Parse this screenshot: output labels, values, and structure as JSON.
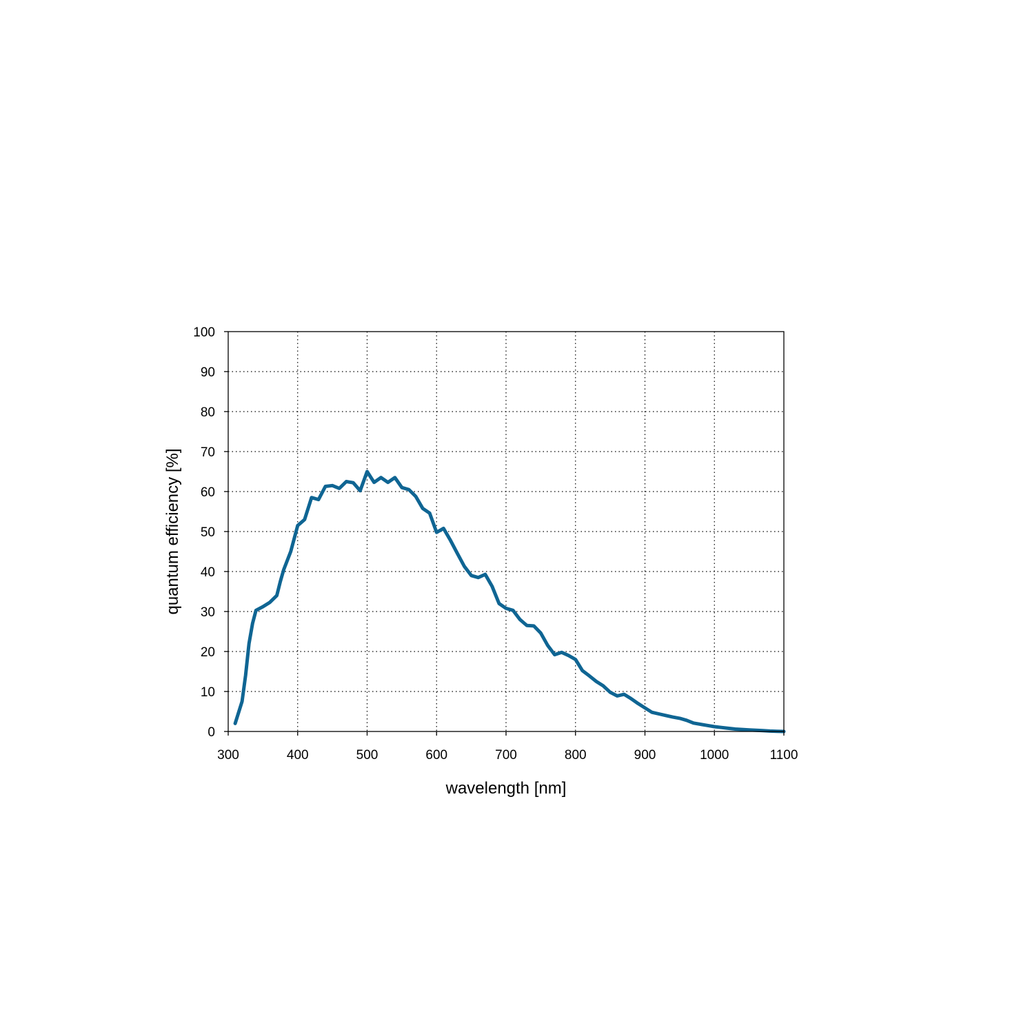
{
  "chart_data": {
    "type": "line",
    "title": "",
    "xlabel": "wavelength [nm]",
    "ylabel": "quantum efficiency [%]",
    "xlim": [
      300,
      1100
    ],
    "ylim": [
      0,
      100
    ],
    "xticks": [
      300,
      400,
      500,
      600,
      700,
      800,
      900,
      1000,
      1100
    ],
    "yticks": [
      0,
      10,
      20,
      30,
      40,
      50,
      60,
      70,
      80,
      90,
      100
    ],
    "grid": true,
    "legend": "none",
    "line_color": "#0f6593",
    "series": [
      {
        "x": [
          310,
          320,
          325,
          330,
          335,
          340,
          350,
          360,
          370,
          375,
          380,
          390,
          400,
          410,
          420,
          430,
          440,
          450,
          460,
          470,
          480,
          490,
          500,
          510,
          520,
          530,
          540,
          550,
          560,
          570,
          580,
          590,
          600,
          610,
          620,
          630,
          640,
          650,
          660,
          670,
          680,
          690,
          700,
          710,
          720,
          730,
          740,
          750,
          760,
          770,
          780,
          790,
          800,
          810,
          820,
          830,
          840,
          850,
          860,
          870,
          880,
          890,
          900,
          910,
          920,
          930,
          940,
          950,
          960,
          970,
          980,
          990,
          1000,
          1010,
          1020,
          1030,
          1040,
          1050,
          1060,
          1070,
          1080,
          1090,
          1100
        ],
        "y": [
          2.0,
          7.5,
          14.0,
          22.0,
          27.0,
          30.3,
          31.2,
          32.3,
          34.0,
          37.5,
          40.5,
          45.0,
          51.5,
          53.0,
          58.5,
          58.0,
          61.3,
          61.5,
          60.8,
          62.5,
          62.2,
          60.2,
          65.0,
          62.3,
          63.5,
          62.3,
          63.5,
          61.0,
          60.5,
          58.8,
          55.8,
          54.6,
          49.8,
          50.8,
          47.8,
          44.5,
          41.3,
          39.0,
          38.5,
          39.3,
          36.3,
          32.0,
          30.8,
          30.3,
          28.0,
          26.5,
          26.4,
          24.6,
          21.5,
          19.2,
          19.8,
          19.0,
          18.0,
          15.2,
          13.9,
          12.5,
          11.4,
          9.8,
          8.9,
          9.3,
          8.2,
          7.0,
          5.9,
          4.8,
          4.4,
          4.0,
          3.6,
          3.3,
          2.8,
          2.1,
          1.8,
          1.5,
          1.2,
          1.0,
          0.8,
          0.6,
          0.5,
          0.4,
          0.3,
          0.2,
          0.1,
          0.05,
          0.0
        ]
      }
    ]
  }
}
